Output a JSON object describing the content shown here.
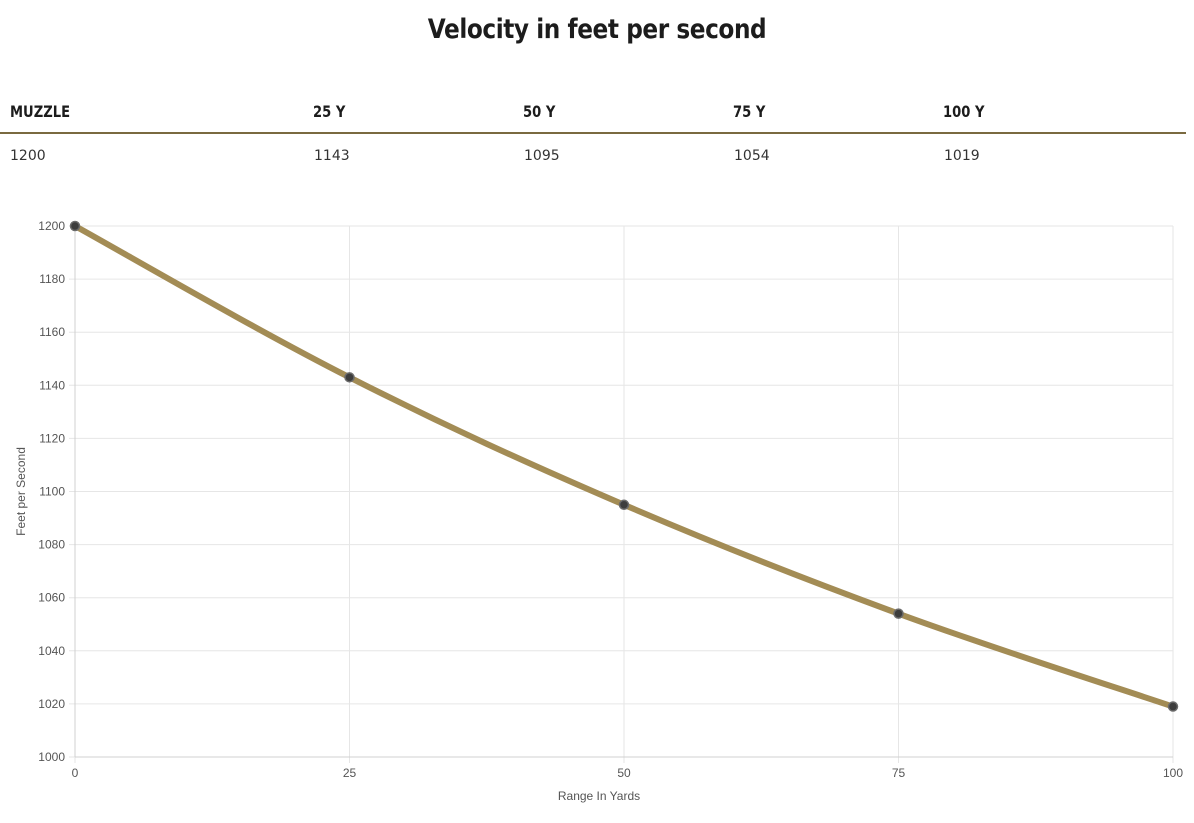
{
  "title": "Velocity in feet per second",
  "table": {
    "headers": [
      "MUZZLE",
      "25 Y",
      "50 Y",
      "75 Y",
      "100 Y"
    ],
    "values": [
      "1200",
      "1143",
      "1095",
      "1054",
      "1019"
    ]
  },
  "colors": {
    "line": "#a38c55",
    "point_fill": "#3d3d3d",
    "point_stroke": "#6b6b6b",
    "grid": "#e6e6e6",
    "axis_text": "#555555",
    "rule": "#7a6a40"
  },
  "chart_data": {
    "type": "line",
    "x": [
      0,
      25,
      50,
      75,
      100
    ],
    "series": [
      {
        "values": [
          1200,
          1143,
          1095,
          1054,
          1019
        ]
      }
    ],
    "xticks": [
      "0",
      "25",
      "50",
      "75",
      "100"
    ],
    "yticks": [
      "1000",
      "1020",
      "1040",
      "1060",
      "1080",
      "1100",
      "1120",
      "1140",
      "1160",
      "1180",
      "1200"
    ],
    "xlabel": "Range In Yards",
    "ylabel": "Feet per Second",
    "xlim": [
      0,
      100
    ],
    "ylim": [
      1000,
      1200
    ],
    "grid": true,
    "curve": "smooth"
  }
}
